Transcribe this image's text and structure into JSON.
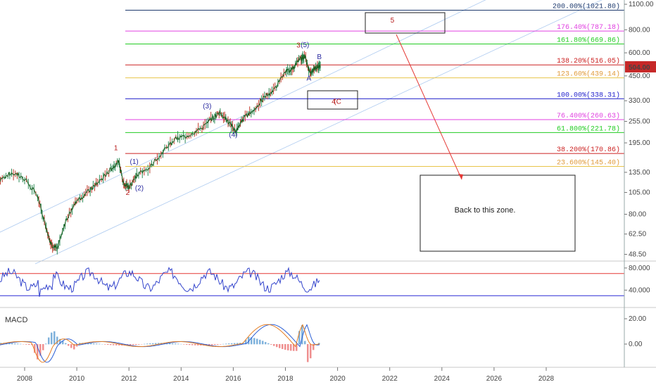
{
  "chart_data": [
    {
      "type": "line",
      "panel": "price",
      "scale": "log",
      "ylim": [
        45,
        1150
      ],
      "y_ticks": [
        "1100.00",
        "800.00",
        "600.00",
        "450.00",
        "330.00",
        "255.00",
        "195.00",
        "135.00",
        "105.00",
        "80.00",
        "62.50",
        "48.50"
      ],
      "last_price_label": "504.00",
      "last_price": 504,
      "series": [
        {
          "values": [
            [
              2007.0,
              120
            ],
            [
              2007.5,
              135
            ],
            [
              2008.0,
              125
            ],
            [
              2008.5,
              100
            ],
            [
              2008.8,
              70
            ],
            [
              2009.0,
              55
            ],
            [
              2009.25,
              52
            ],
            [
              2009.6,
              75
            ],
            [
              2010.0,
              95
            ],
            [
              2010.4,
              105
            ],
            [
              2010.8,
              118
            ],
            [
              2011.3,
              140
            ],
            [
              2011.6,
              155
            ],
            [
              2011.8,
              118
            ],
            [
              2012.0,
              112
            ],
            [
              2012.3,
              130
            ],
            [
              2012.8,
              145
            ],
            [
              2013.3,
              175
            ],
            [
              2013.8,
              205
            ],
            [
              2014.3,
              215
            ],
            [
              2014.8,
              235
            ],
            [
              2015.2,
              265
            ],
            [
              2015.5,
              285
            ],
            [
              2015.8,
              255
            ],
            [
              2016.1,
              225
            ],
            [
              2016.4,
              265
            ],
            [
              2016.8,
              295
            ],
            [
              2017.2,
              345
            ],
            [
              2017.6,
              385
            ],
            [
              2018.0,
              470
            ],
            [
              2018.3,
              500
            ],
            [
              2018.6,
              560
            ],
            [
              2018.75,
              575
            ],
            [
              2018.95,
              455
            ],
            [
              2019.1,
              490
            ],
            [
              2019.25,
              510
            ],
            [
              2019.35,
              500
            ]
          ]
        }
      ],
      "fib_levels": [
        {
          "label": "200.00%(1021.80)",
          "value": 1021.8,
          "color": "#1e3a6e"
        },
        {
          "label": "176.40%(787.18)",
          "value": 787.18,
          "color": "#e040e0"
        },
        {
          "label": "161.80%(669.86)",
          "value": 669.86,
          "color": "#22cc22"
        },
        {
          "label": "138.20%(516.05)",
          "value": 516.05,
          "color": "#cc2222"
        },
        {
          "label": "123.60%(439.14)",
          "value": 439.14,
          "color": "#e8c44a"
        },
        {
          "label": "100.00%(338.31)",
          "value": 338.31,
          "color": "#2222cc"
        },
        {
          "label": "76.400%(260.63)",
          "value": 260.63,
          "color": "#e040e0"
        },
        {
          "label": "61.800%(221.78)",
          "value": 221.78,
          "color": "#22cc22"
        },
        {
          "label": "38.200%(170.86)",
          "value": 170.86,
          "color": "#cc2222"
        },
        {
          "label": "23.600%(145.40)",
          "value": 145.4,
          "color": "#e8c44a"
        }
      ],
      "wave_labels": [
        {
          "text": "1",
          "x": 2011.5,
          "y": 178,
          "color": "#b71c1c"
        },
        {
          "text": "2",
          "x": 2011.95,
          "y": 102,
          "color": "#b71c1c"
        },
        {
          "text": "(1)",
          "x": 2012.2,
          "y": 150,
          "color": "#2a2aa0"
        },
        {
          "text": "(2)",
          "x": 2012.4,
          "y": 108,
          "color": "#2a2aa0"
        },
        {
          "text": "(3)",
          "x": 2015.0,
          "y": 300,
          "color": "#2a2aa0"
        },
        {
          "text": "(4)",
          "x": 2016.0,
          "y": 210,
          "color": "#2a2aa0"
        },
        {
          "text": "3",
          "x": 2018.5,
          "y": 640,
          "color": "#b71c1c"
        },
        {
          "text": "(5)",
          "x": 2018.75,
          "y": 645,
          "color": "#2a2aa0"
        },
        {
          "text": "A",
          "x": 2018.9,
          "y": 425,
          "color": "#2a2aa0"
        },
        {
          "text": "B",
          "x": 2019.3,
          "y": 555,
          "color": "#2a2aa0"
        },
        {
          "text": "4",
          "x": 2019.85,
          "y": 318,
          "color": "#b71c1c"
        },
        {
          "text": "(C",
          "x": 2020.0,
          "y": 318,
          "color": "#b71c1c"
        },
        {
          "text": "5",
          "x": 2022.1,
          "y": 875,
          "color": "#b71c1c"
        }
      ],
      "annotation": "Back to this zone."
    },
    {
      "type": "line",
      "panel": "oscillator",
      "y_ticks": [
        "80.000",
        "40.000"
      ],
      "levels": [
        70,
        30
      ]
    },
    {
      "type": "line",
      "panel": "macd",
      "title": "MACD",
      "y_ticks": [
        "20.00",
        "0.00"
      ]
    }
  ],
  "x_axis": {
    "tick_labels": [
      "2008",
      "2010",
      "2012",
      "2014",
      "2016",
      "2018",
      "2020",
      "2022",
      "2024",
      "2026",
      "2028"
    ]
  },
  "colors": {
    "price_line": "#2e7d32",
    "channel": "#aecbf0",
    "oscillator_line": "#3344cc",
    "macd_line": "#e67e22",
    "signal_line": "#2b5fd6",
    "hist_pos": "#7fb2dc",
    "hist_neg": "#ef8f8f",
    "target_arrow": "#e53935",
    "last_price_bg": "#c62828"
  }
}
